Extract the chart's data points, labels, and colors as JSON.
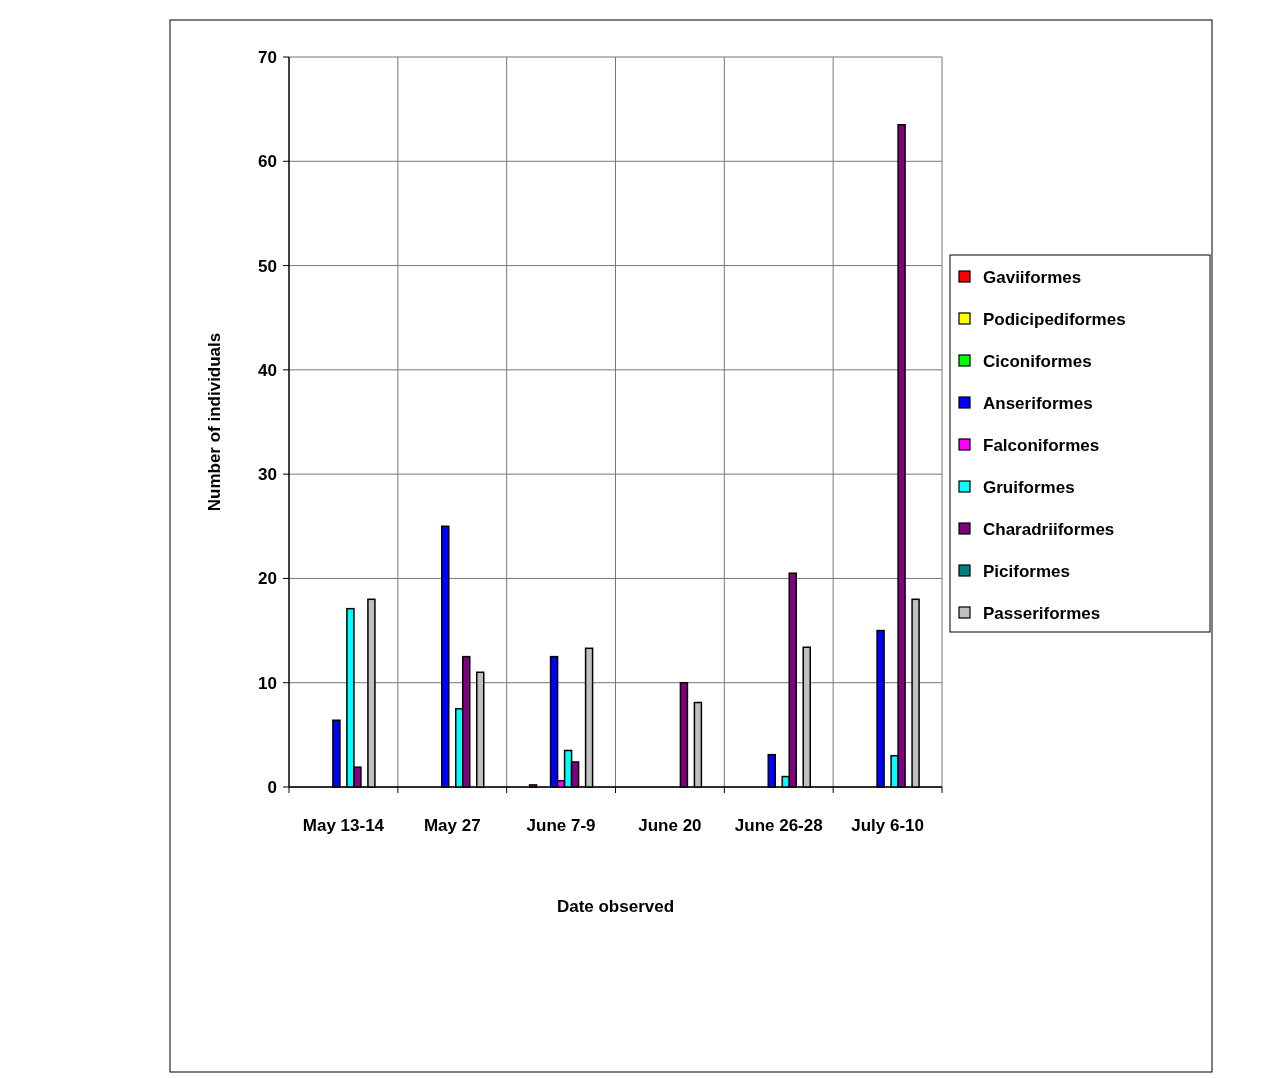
{
  "chart_data": {
    "type": "bar",
    "xlabel": "Date observed",
    "ylabel": "Number of individuals",
    "categories": [
      "May 13-14",
      "May 27",
      "June 7-9",
      "June 20",
      "June 26-28",
      "July 6-10"
    ],
    "series": [
      {
        "name": "Gaviiformes",
        "color": "#ff0000",
        "values": [
          0,
          0,
          0.2,
          0,
          0,
          0
        ]
      },
      {
        "name": "Podicipediformes",
        "color": "#ffff00",
        "values": [
          0,
          0,
          0,
          0,
          0,
          0
        ]
      },
      {
        "name": "Ciconiformes",
        "color": "#00ff00",
        "values": [
          0,
          0,
          0,
          0,
          0,
          0
        ]
      },
      {
        "name": "Anseriformes",
        "color": "#0000ff",
        "values": [
          6.4,
          25,
          12.5,
          0,
          3.1,
          15
        ]
      },
      {
        "name": "Falconiformes",
        "color": "#ff00ff",
        "values": [
          0,
          0,
          0.6,
          0,
          0,
          0
        ]
      },
      {
        "name": "Gruiformes",
        "color": "#00ffff",
        "values": [
          17.1,
          7.5,
          3.5,
          0,
          1,
          3
        ]
      },
      {
        "name": "Charadriiformes",
        "color": "#800080",
        "values": [
          1.9,
          12.5,
          2.4,
          10,
          20.5,
          63.5
        ]
      },
      {
        "name": "Piciformes",
        "color": "#008080",
        "values": [
          0,
          0,
          0,
          0,
          0,
          0
        ]
      },
      {
        "name": "Passeriformes",
        "color": "#c0c0c0",
        "values": [
          18,
          11,
          13.3,
          8.1,
          13.4,
          18
        ]
      }
    ],
    "ylim": [
      0,
      70
    ],
    "yticks": [
      0,
      10,
      20,
      30,
      40,
      50,
      60,
      70
    ],
    "grid": true,
    "legend": "right"
  }
}
